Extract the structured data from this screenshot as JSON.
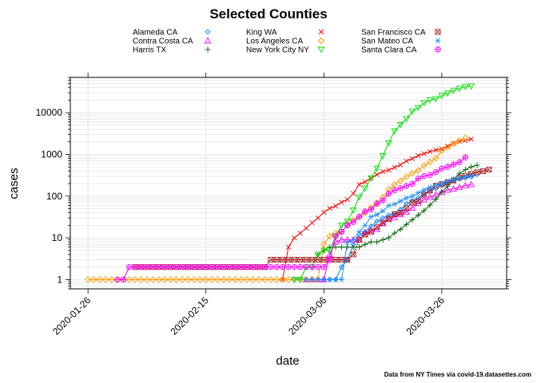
{
  "chart_data": {
    "type": "line",
    "title": "Selected Counties",
    "xlabel": "date",
    "ylabel": "cases",
    "y_scale": "log10",
    "ylim": [
      0.6,
      70000
    ],
    "xlim": [
      "2020-01-23",
      "2020-04-06"
    ],
    "x_ticks": [
      "2020-01-26",
      "2020-02-15",
      "2020-03-06",
      "2020-03-26"
    ],
    "y_ticks": [
      1,
      10,
      100,
      1000,
      10000
    ],
    "y_tick_labels": [
      "1",
      "10",
      "100",
      "1000",
      "10000"
    ],
    "grid": true,
    "legend_position": "top",
    "source_note": "Data from NY Times via covid-19.datasettes.com",
    "series": [
      {
        "name": "Alameda CA",
        "color": "#0080ff",
        "marker": "diamond-small",
        "start": "2020-03-01",
        "values": [
          1,
          1,
          1,
          1,
          1,
          1,
          1,
          1,
          2,
          3,
          7,
          12,
          14,
          19,
          25,
          30,
          35,
          38,
          48,
          66,
          77,
          90,
          114,
          131,
          153,
          180,
          205,
          234,
          258,
          271,
          290,
          330
        ]
      },
      {
        "name": "Contra Costa CA",
        "color": "#ff00ff",
        "marker": "triangle-up",
        "start": "2020-03-03",
        "values": [
          1,
          1,
          1,
          1,
          4,
          8,
          9,
          9,
          9,
          9,
          13,
          15,
          16,
          22,
          29,
          31,
          37,
          42,
          52,
          68,
          82,
          94,
          108,
          123,
          140,
          150,
          162,
          180,
          190
        ]
      },
      {
        "name": "Harris TX",
        "color": "#006400",
        "marker": "plus",
        "start": "2020-03-05",
        "values": [
          4,
          5,
          6,
          6,
          6,
          6,
          6,
          6,
          7,
          8,
          8,
          9,
          10,
          13,
          16,
          21,
          27,
          35,
          45,
          61,
          85,
          125,
          175,
          250,
          350,
          430,
          500,
          550
        ]
      },
      {
        "name": "King WA",
        "color": "#ff0000",
        "marker": "x",
        "start": "2020-02-28",
        "values": [
          1,
          6,
          10,
          13,
          17,
          23,
          30,
          41,
          51,
          58,
          71,
          83,
          116,
          190,
          220,
          270,
          328,
          387,
          420,
          488,
          562,
          693,
          793,
          934,
          1040,
          1170,
          1277,
          1359,
          1577,
          1828,
          2077,
          2159,
          2330
        ]
      },
      {
        "name": "Los Angeles CA",
        "color": "#ff9900",
        "marker": "diamond",
        "start": "2020-01-26",
        "values": [
          1,
          1,
          1,
          1,
          1,
          1,
          1,
          1,
          1,
          1,
          1,
          1,
          1,
          1,
          1,
          1,
          1,
          1,
          1,
          1,
          1,
          1,
          1,
          1,
          1,
          1,
          1,
          1,
          1,
          1,
          1,
          1,
          1,
          1,
          1,
          1,
          1,
          1,
          1,
          1,
          7,
          11,
          13,
          14,
          20,
          27,
          32,
          40,
          53,
          69,
          94,
          144,
          190,
          231,
          292,
          351,
          409,
          536,
          662,
          812,
          1216,
          1465,
          1829,
          2136,
          2474
        ]
      },
      {
        "name": "New York City NY",
        "color": "#00e000",
        "marker": "triangle-down",
        "start": "2020-03-01",
        "values": [
          1,
          1,
          2,
          2,
          4,
          5,
          5,
          11,
          20,
          25,
          46,
          95,
          154,
          269,
          463,
          923,
          1871,
          3615,
          5151,
          7102,
          10764,
          13119,
          17008,
          20011,
          21393,
          25573,
          29158,
          33768,
          38087,
          41771,
          43119
        ]
      },
      {
        "name": "San Francisco CA",
        "color": "#a52a2a",
        "marker": "square-x",
        "start": "2020-02-03",
        "values": [
          2,
          2,
          2,
          2,
          2,
          2,
          2,
          2,
          2,
          2,
          2,
          2,
          2,
          2,
          2,
          2,
          2,
          2,
          2,
          2,
          2,
          2,
          2,
          3,
          3,
          3,
          3,
          3,
          3,
          3,
          3,
          3,
          3,
          3,
          3,
          3,
          3,
          4,
          9,
          12,
          14,
          18,
          23,
          28,
          37,
          40,
          51,
          70,
          76,
          108,
          136,
          178,
          195,
          214,
          237,
          279,
          308,
          340,
          374,
          397,
          434
        ]
      },
      {
        "name": "San Mateo CA",
        "color": "#1e90ff",
        "marker": "asterisk",
        "start": "2020-03-03",
        "values": [
          1,
          1,
          1,
          1,
          1,
          1,
          1,
          8,
          9,
          14,
          20,
          32,
          36,
          44,
          59,
          64,
          76,
          90,
          100,
          120,
          140,
          165,
          180,
          200,
          230,
          250,
          270,
          290,
          309
        ]
      },
      {
        "name": "Santa Clara CA",
        "color": "#ff00ff",
        "marker": "circle-plus",
        "start": "2020-01-31",
        "values": [
          1,
          1,
          2,
          2,
          2,
          2,
          2,
          2,
          2,
          2,
          2,
          2,
          2,
          2,
          2,
          2,
          2,
          2,
          2,
          2,
          2,
          2,
          2,
          2,
          2,
          2,
          2,
          2,
          2,
          2,
          2,
          2,
          2,
          2,
          2,
          2,
          3,
          11,
          14,
          20,
          24,
          32,
          43,
          48,
          66,
          79,
          114,
          138,
          155,
          175,
          196,
          263,
          302,
          321,
          375,
          459,
          500,
          574,
          651,
          848
        ]
      }
    ]
  }
}
